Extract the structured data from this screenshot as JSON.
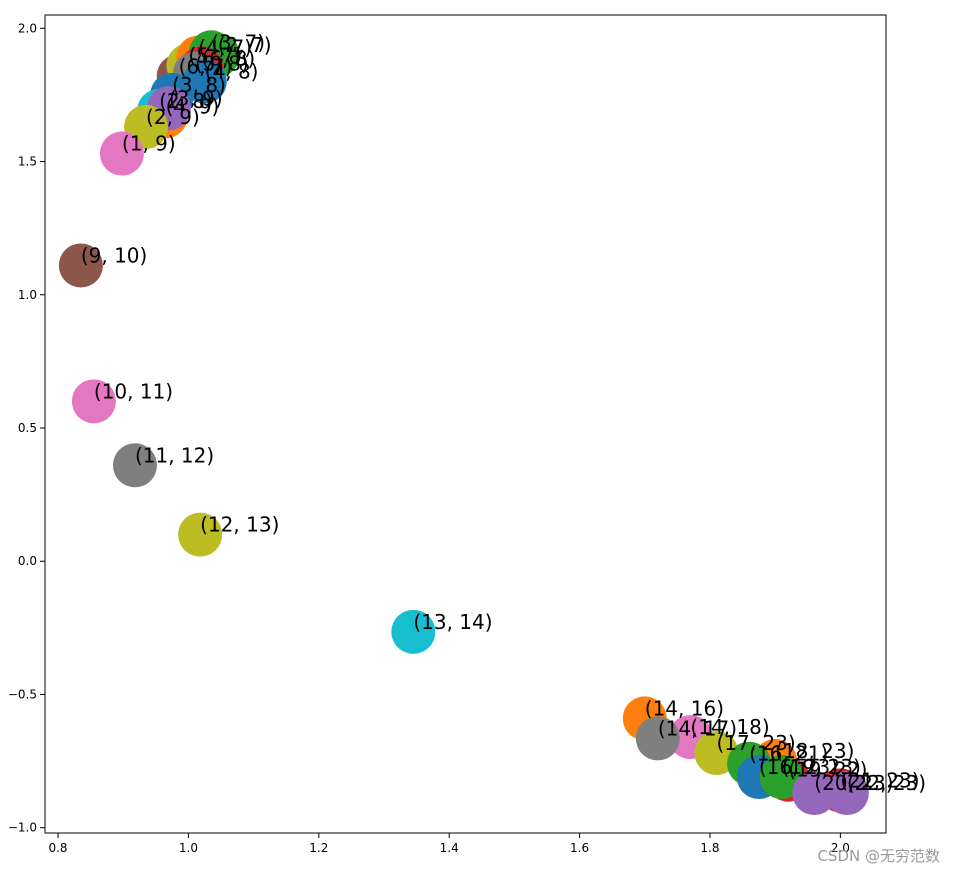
{
  "chart_data": {
    "type": "scatter",
    "title": "",
    "xlabel": "",
    "ylabel": "",
    "xlim": [
      0.78,
      2.07
    ],
    "ylim": [
      -1.02,
      2.05
    ],
    "x_ticks": [
      0.8,
      1.0,
      1.2,
      1.4,
      1.6,
      1.8,
      2.0
    ],
    "x_tick_labels": [
      "0.8",
      "1.0",
      "1.2",
      "1.4",
      "1.6",
      "1.8",
      "2.0"
    ],
    "y_ticks": [
      -1.0,
      -0.5,
      0.0,
      0.5,
      1.0,
      1.5,
      2.0
    ],
    "y_tick_labels": [
      "−1.0",
      "−0.5",
      "0.0",
      "0.5",
      "1.0",
      "1.5",
      "2.0"
    ],
    "grid": false,
    "legend": "none",
    "palette": [
      "#1f77b4",
      "#ff7f0e",
      "#2ca02c",
      "#d62728",
      "#9467bd",
      "#8c564b",
      "#e377c2",
      "#7f7f7f",
      "#bcbd22",
      "#17becf"
    ],
    "points": [
      {
        "x": 0.985,
        "y": 1.82,
        "color": "#8c564b",
        "label": "(6, 7)"
      },
      {
        "x": 1.0,
        "y": 1.86,
        "color": "#bcbd22",
        "label": "(5, 7)"
      },
      {
        "x": 1.015,
        "y": 1.89,
        "color": "#ff7f0e",
        "label": "(4, 7)"
      },
      {
        "x": 1.035,
        "y": 1.91,
        "color": "#2ca02c",
        "label": "(3, 7)"
      },
      {
        "x": 1.045,
        "y": 1.9,
        "color": "#2ca02c",
        "label": "(2, 7)"
      },
      {
        "x": 1.02,
        "y": 1.85,
        "color": "#d62728",
        "label": "(6, 8)"
      },
      {
        "x": 1.01,
        "y": 1.83,
        "color": "#7f7f7f",
        "label": "(5, 8)"
      },
      {
        "x": 1.025,
        "y": 1.8,
        "color": "#1f77b4",
        "label": "(4, 8)"
      },
      {
        "x": 0.975,
        "y": 1.75,
        "color": "#1f77b4",
        "label": "(3, 8)"
      },
      {
        "x": 0.955,
        "y": 1.69,
        "color": "#17becf",
        "label": "(2, 8)"
      },
      {
        "x": 0.965,
        "y": 1.67,
        "color": "#ff7f0e",
        "label": "(4, 9)"
      },
      {
        "x": 0.97,
        "y": 1.7,
        "color": "#9467bd",
        "label": "(3, 9)"
      },
      {
        "x": 0.935,
        "y": 1.63,
        "color": "#bcbd22",
        "label": "(2, 9)"
      },
      {
        "x": 0.898,
        "y": 1.53,
        "color": "#e377c2",
        "label": "(1, 9)"
      },
      {
        "x": 0.835,
        "y": 1.11,
        "color": "#8c564b",
        "label": "(9, 10)"
      },
      {
        "x": 0.855,
        "y": 0.6,
        "color": "#e377c2",
        "label": "(10, 11)"
      },
      {
        "x": 0.918,
        "y": 0.36,
        "color": "#7f7f7f",
        "label": "(11, 12)"
      },
      {
        "x": 1.018,
        "y": 0.1,
        "color": "#bcbd22",
        "label": "(12, 13)"
      },
      {
        "x": 1.345,
        "y": -0.265,
        "color": "#17becf",
        "label": "(13, 14)"
      },
      {
        "x": 1.7,
        "y": -0.59,
        "color": "#ff7f0e",
        "label": "(14, 16)"
      },
      {
        "x": 1.77,
        "y": -0.66,
        "color": "#e377c2",
        "label": "(14, 18)"
      },
      {
        "x": 1.72,
        "y": -0.665,
        "color": "#7f7f7f",
        "label": "(14, 17)"
      },
      {
        "x": 1.81,
        "y": -0.72,
        "color": "#bcbd22",
        "label": "(17, 23)"
      },
      {
        "x": 1.9,
        "y": -0.75,
        "color": "#ff7f0e",
        "label": "(18, 23)"
      },
      {
        "x": 1.86,
        "y": -0.76,
        "color": "#2ca02c",
        "label": "(16, 21)"
      },
      {
        "x": 1.875,
        "y": -0.81,
        "color": "#1f77b4",
        "label": "(16, 23)"
      },
      {
        "x": 1.92,
        "y": -0.82,
        "color": "#d62728",
        "label": "(19, 22)"
      },
      {
        "x": 1.91,
        "y": -0.81,
        "color": "#2ca02c",
        "label": "(19, 23)"
      },
      {
        "x": 2.0,
        "y": -0.86,
        "color": "#d62728",
        "label": "(21, 23)"
      },
      {
        "x": 1.96,
        "y": -0.87,
        "color": "#9467bd",
        "label": "(20, 23)"
      },
      {
        "x": 2.01,
        "y": -0.87,
        "color": "#9467bd",
        "label": "(22, 23)"
      }
    ]
  },
  "watermark": "CSDN @无穷范数"
}
